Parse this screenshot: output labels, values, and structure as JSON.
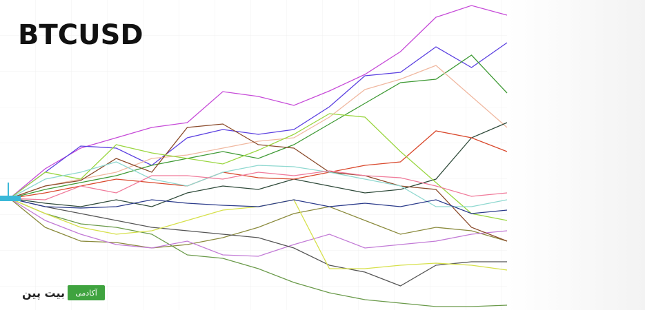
{
  "chart_data": {
    "type": "line",
    "title": "BTCUSD",
    "logo": {
      "badge": "آکادمی",
      "name": "بیت پین"
    },
    "x": [
      0,
      1,
      2,
      3,
      4,
      5,
      6,
      7,
      8,
      9,
      10,
      11,
      12,
      13,
      14
    ],
    "xlim": [
      0,
      14
    ],
    "ylim": [
      0,
      450
    ],
    "series": [
      {
        "color": "#c64ad8",
        "values": [
          162,
          205,
          235,
          250,
          265,
          272,
          317,
          310,
          297,
          318,
          342,
          375,
          425,
          442,
          428
        ]
      },
      {
        "color": "#5a3fe0",
        "values": [
          162,
          200,
          238,
          235,
          210,
          250,
          262,
          255,
          262,
          295,
          340,
          345,
          382,
          352,
          388
        ]
      },
      {
        "color": "#3f9a35",
        "values": [
          162,
          175,
          185,
          195,
          210,
          220,
          230,
          220,
          240,
          270,
          300,
          330,
          335,
          370,
          315
        ]
      },
      {
        "color": "#f0b8a0",
        "values": [
          162,
          180,
          190,
          200,
          220,
          225,
          235,
          245,
          250,
          280,
          320,
          335,
          355,
          310,
          265
        ]
      },
      {
        "color": "#2f4a3a",
        "values": [
          162,
          155,
          150,
          160,
          150,
          170,
          180,
          175,
          190,
          180,
          170,
          175,
          190,
          250,
          272
        ]
      },
      {
        "color": "#d9482c",
        "values": [
          162,
          170,
          180,
          190,
          185,
          180,
          200,
          192,
          190,
          200,
          210,
          215,
          260,
          250,
          230
        ]
      },
      {
        "color": "#8a8a3c",
        "values": [
          162,
          120,
          100,
          98,
          90,
          95,
          105,
          120,
          140,
          150,
          130,
          110,
          120,
          115,
          100
        ]
      },
      {
        "color": "#6a9a4a",
        "values": [
          162,
          140,
          125,
          120,
          110,
          80,
          75,
          60,
          40,
          25,
          15,
          10,
          5,
          5,
          7
        ]
      },
      {
        "color": "#c27ad6",
        "values": [
          162,
          130,
          110,
          95,
          90,
          100,
          80,
          78,
          95,
          110,
          90,
          95,
          100,
          110,
          115
        ]
      },
      {
        "color": "#555555",
        "values": [
          162,
          150,
          140,
          130,
          120,
          115,
          110,
          105,
          90,
          65,
          55,
          35,
          65,
          70,
          70
        ]
      },
      {
        "color": "#d6e04a",
        "values": [
          162,
          140,
          120,
          110,
          115,
          130,
          145,
          150,
          160,
          60,
          60,
          65,
          68,
          65,
          58
        ]
      },
      {
        "color": "#8a4a2a",
        "values": [
          162,
          180,
          188,
          220,
          200,
          265,
          270,
          240,
          235,
          200,
          195,
          180,
          175,
          120,
          100
        ]
      },
      {
        "color": "#9ad640",
        "values": [
          162,
          200,
          190,
          240,
          228,
          220,
          212,
          232,
          255,
          285,
          280,
          230,
          185,
          140,
          130
        ]
      },
      {
        "color": "#8fd8d0",
        "values": [
          162,
          190,
          200,
          215,
          190,
          180,
          200,
          210,
          208,
          200,
          190,
          180,
          150,
          150,
          160
        ]
      },
      {
        "color": "#2a3a8a",
        "values": [
          162,
          150,
          148,
          150,
          160,
          155,
          152,
          150,
          160,
          150,
          155,
          150,
          160,
          140,
          145
        ]
      },
      {
        "color": "#f07a9a",
        "values": [
          162,
          160,
          180,
          170,
          195,
          195,
          190,
          200,
          195,
          202,
          195,
          192,
          180,
          165,
          170
        ]
      }
    ]
  }
}
